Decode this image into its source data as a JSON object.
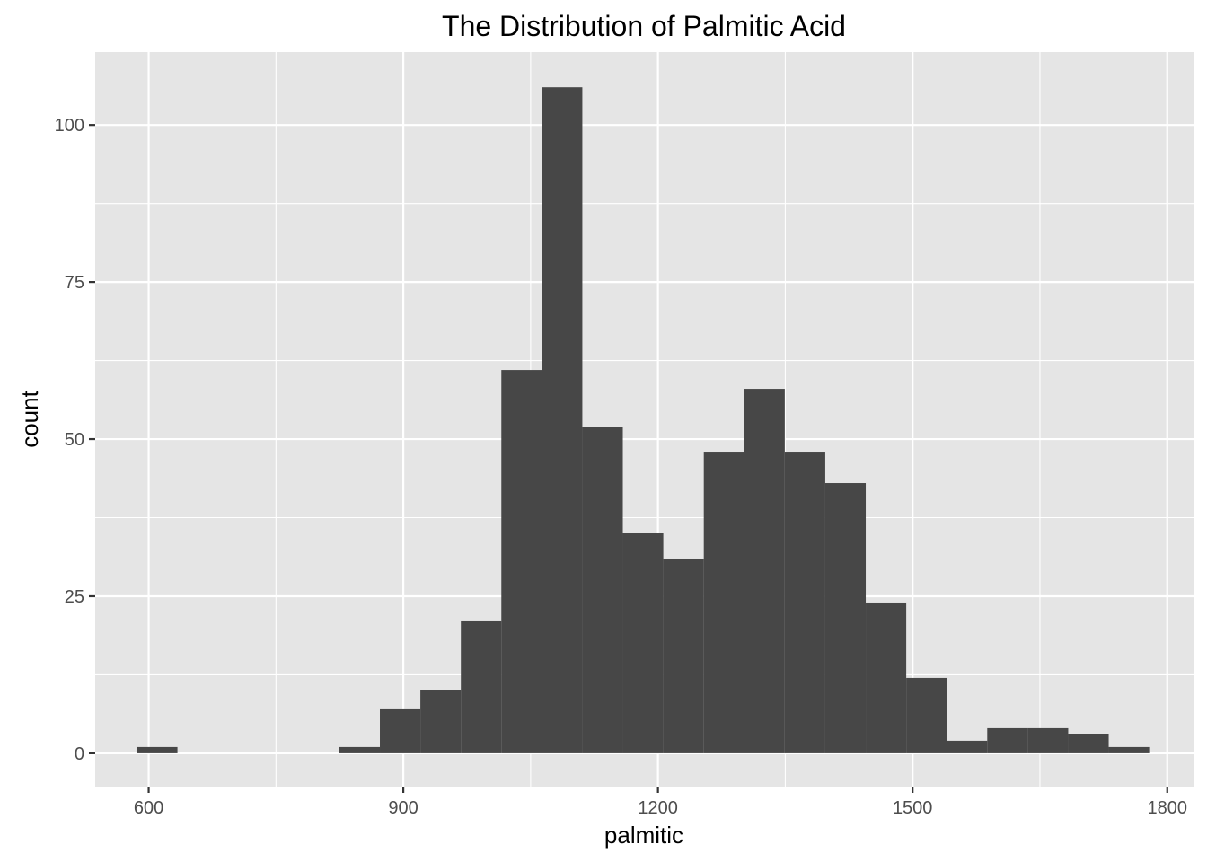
{
  "chart_data": {
    "type": "bar",
    "title": "The Distribution of Palmitic Acid",
    "xlabel": "palmitic",
    "ylabel": "count",
    "xlim": [
      537,
      1832
    ],
    "ylim": [
      -5.3,
      111.6
    ],
    "x_ticks": [
      600,
      900,
      1200,
      1500,
      1800
    ],
    "x_tick_labels": [
      "600",
      "900",
      "1200",
      "1500",
      "1800"
    ],
    "y_ticks": [
      0,
      25,
      50,
      75,
      100
    ],
    "y_tick_labels": [
      "0",
      "25",
      "50",
      "75",
      "100"
    ],
    "x_minor_ticks": [
      750,
      1050,
      1350,
      1650
    ],
    "y_minor_ticks": [
      12.5,
      37.5,
      62.5,
      87.5
    ],
    "grid": true,
    "legend": "none",
    "colors": {
      "panel": "#e5e5e5",
      "grid": "#ffffff",
      "bar": "#474747",
      "tick_text": "#4d4d4d",
      "tick": "#333333"
    },
    "bins": [
      {
        "x0": 586.2,
        "x1": 633.9,
        "count": 1
      },
      {
        "x0": 633.9,
        "x1": 681.6,
        "count": 0
      },
      {
        "x0": 681.6,
        "x1": 729.3,
        "count": 0
      },
      {
        "x0": 729.3,
        "x1": 777.0,
        "count": 0
      },
      {
        "x0": 777.0,
        "x1": 824.7,
        "count": 0
      },
      {
        "x0": 824.7,
        "x1": 872.4,
        "count": 1
      },
      {
        "x0": 872.4,
        "x1": 920.1,
        "count": 7
      },
      {
        "x0": 920.1,
        "x1": 967.8,
        "count": 10
      },
      {
        "x0": 967.8,
        "x1": 1015.5,
        "count": 21
      },
      {
        "x0": 1015.5,
        "x1": 1063.2,
        "count": 61
      },
      {
        "x0": 1063.2,
        "x1": 1110.9,
        "count": 106
      },
      {
        "x0": 1110.9,
        "x1": 1158.6,
        "count": 52
      },
      {
        "x0": 1158.6,
        "x1": 1206.3,
        "count": 35
      },
      {
        "x0": 1206.3,
        "x1": 1254.0,
        "count": 31
      },
      {
        "x0": 1254.0,
        "x1": 1301.7,
        "count": 48
      },
      {
        "x0": 1301.7,
        "x1": 1349.4,
        "count": 58
      },
      {
        "x0": 1349.4,
        "x1": 1397.1,
        "count": 48
      },
      {
        "x0": 1397.1,
        "x1": 1444.8,
        "count": 43
      },
      {
        "x0": 1444.8,
        "x1": 1492.5,
        "count": 24
      },
      {
        "x0": 1492.5,
        "x1": 1540.2,
        "count": 12
      },
      {
        "x0": 1540.2,
        "x1": 1587.9,
        "count": 2
      },
      {
        "x0": 1587.9,
        "x1": 1635.6,
        "count": 4
      },
      {
        "x0": 1635.6,
        "x1": 1683.3,
        "count": 4
      },
      {
        "x0": 1683.3,
        "x1": 1731.0,
        "count": 3
      },
      {
        "x0": 1731.0,
        "x1": 1778.7,
        "count": 1
      }
    ]
  }
}
